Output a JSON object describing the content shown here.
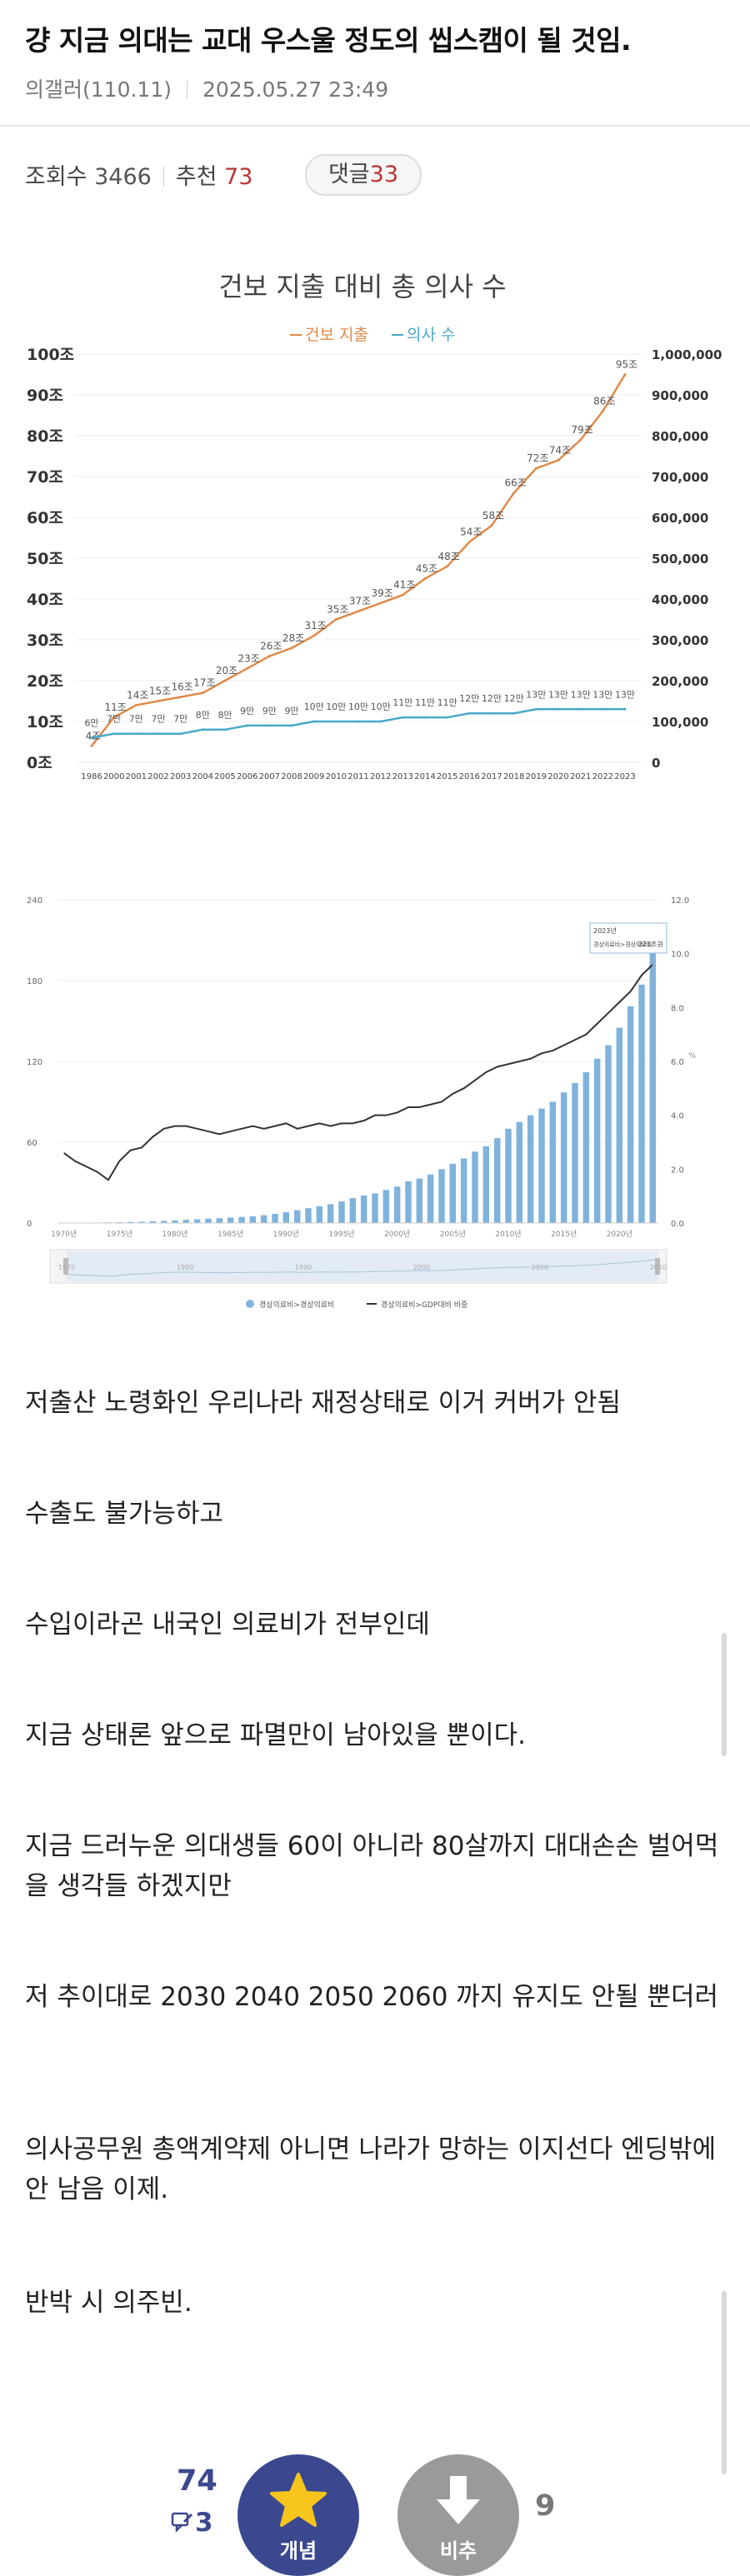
{
  "post": {
    "title": "걍 지금 의대는 교대 우스울 정도의 씹스캠이 될 것임.",
    "author": "의갤러(110.11)",
    "datetime": "2025.05.27 23:49",
    "views_label": "조회수",
    "views": "3466",
    "recommend_label": "추천",
    "recommend": "73",
    "comments_label": "댓글",
    "comments": "33"
  },
  "chart1": {
    "chart_data": {
      "type": "line",
      "title": "건보 지출 대비 총 의사 수",
      "legend": [
        "건보 지출",
        "의사 수"
      ],
      "categories": [
        "1986",
        "2000",
        "2001",
        "2002",
        "2003",
        "2004",
        "2005",
        "2006",
        "2007",
        "2008",
        "2009",
        "2010",
        "2011",
        "2012",
        "2013",
        "2014",
        "2015",
        "2016",
        "2017",
        "2018",
        "2019",
        "2020",
        "2021",
        "2022",
        "2023"
      ],
      "series": [
        {
          "name": "건보 지출",
          "values": [
            4,
            11,
            14,
            15,
            16,
            17,
            20,
            23,
            26,
            28,
            31,
            35,
            37,
            39,
            41,
            45,
            48,
            54,
            58,
            66,
            72,
            74,
            79,
            86,
            95
          ]
        },
        {
          "name": "의사 수",
          "values": [
            60000,
            70000,
            70000,
            70000,
            70000,
            80000,
            80000,
            90000,
            90000,
            90000,
            100000,
            100000,
            100000,
            100000,
            110000,
            110000,
            110000,
            120000,
            120000,
            120000,
            130000,
            130000,
            130000,
            130000,
            130000
          ]
        }
      ],
      "point_labels": [
        "4조",
        "11조",
        "14조",
        "15조",
        "16조",
        "17조",
        "20조",
        "23조",
        "26조",
        "28조",
        "31조",
        "35조",
        "37조",
        "39조",
        "41조",
        "45조",
        "48조",
        "54조",
        "58조",
        "66조",
        "72조",
        "74조",
        "79조",
        "86조",
        "95조"
      ],
      "count_labels": [
        "6만",
        "7만",
        "7만",
        "7만",
        "7만",
        "8만",
        "8만",
        "9만",
        "9만",
        "9만",
        "10만",
        "10만",
        "10만",
        "10만",
        "11만",
        "11만",
        "11만",
        "12만",
        "12만",
        "12만",
        "13만",
        "13만",
        "13만",
        "13만",
        "13만"
      ],
      "left_ticks": [
        "0조",
        "10조",
        "20조",
        "30조",
        "40조",
        "50조",
        "60조",
        "70조",
        "80조",
        "90조",
        "100조"
      ],
      "right_ticks": [
        "0",
        "100,000",
        "200,000",
        "300,000",
        "400,000",
        "500,000",
        "600,000",
        "700,000",
        "800,000",
        "900,000",
        "1,000,000"
      ],
      "ylim": [
        0,
        100
      ],
      "y2lim": [
        0,
        1000000
      ]
    },
    "colors": {
      "spend": "#e08a4a",
      "doctors": "#4aa8c9"
    }
  },
  "chart2": {
    "chart_data": {
      "type": "bar",
      "years": [
        1970,
        1971,
        1972,
        1973,
        1974,
        1975,
        1976,
        1977,
        1978,
        1979,
        1980,
        1981,
        1982,
        1983,
        1984,
        1985,
        1986,
        1987,
        1988,
        1989,
        1990,
        1991,
        1992,
        1993,
        1994,
        1995,
        1996,
        1997,
        1998,
        1999,
        2000,
        2001,
        2002,
        2003,
        2004,
        2005,
        2006,
        2007,
        2008,
        2009,
        2010,
        2011,
        2012,
        2013,
        2014,
        2015,
        2016,
        2017,
        2018,
        2019,
        2020,
        2021,
        2022,
        2023
      ],
      "series": [
        {
          "name": "경상의료비>경상의료비",
          "values": [
            0.2,
            0.2,
            0.3,
            0.4,
            0.5,
            0.6,
            0.8,
            1,
            1.3,
            1.6,
            2,
            2.4,
            2.8,
            3.2,
            3.6,
            4,
            4.5,
            5,
            5.8,
            6.8,
            8,
            9.5,
            11,
            12.5,
            14,
            16,
            18.5,
            20.5,
            22,
            24.5,
            27,
            31,
            33,
            36,
            40,
            44,
            48,
            53,
            57,
            63,
            70,
            75,
            80,
            85,
            90,
            97,
            104,
            112,
            122,
            132,
            145,
            161,
            177,
            221
          ]
        },
        {
          "name": "경상의료비>GDP대비 비중",
          "values": [
            2.6,
            2.3,
            2.1,
            1.9,
            1.6,
            2.3,
            2.7,
            2.8,
            3.2,
            3.5,
            3.6,
            3.6,
            3.5,
            3.4,
            3.3,
            3.4,
            3.5,
            3.6,
            3.5,
            3.6,
            3.7,
            3.5,
            3.6,
            3.7,
            3.6,
            3.7,
            3.7,
            3.8,
            4,
            4,
            4.1,
            4.3,
            4.3,
            4.4,
            4.5,
            4.8,
            5,
            5.3,
            5.6,
            5.8,
            5.9,
            6,
            6.1,
            6.3,
            6.4,
            6.6,
            6.8,
            7,
            7.4,
            7.8,
            8.2,
            8.6,
            9.2,
            9.6
          ]
        }
      ],
      "left_ticks": [
        "0",
        "60",
        "120",
        "180",
        "240"
      ],
      "right_ticks": [
        "0.0",
        "2.0",
        "4.0",
        "6.0",
        "8.0",
        "10.0",
        "12.0"
      ],
      "x_ticks": [
        "1970년",
        "1975년",
        "1980년",
        "1985년",
        "1990년",
        "1995년",
        "2000년",
        "2005년",
        "2010년",
        "2015년",
        "2020년"
      ],
      "nav_ticks": [
        "1970",
        "1980",
        "1990",
        "2000",
        "2010",
        "2020"
      ],
      "right_unit": "%",
      "ylim": [
        0,
        240
      ],
      "y2lim": [
        0,
        12
      ],
      "tooltip_year": "2023년",
      "tooltip_label": "경상의료비>경상의료비",
      "tooltip_value": "221조원"
    },
    "colors": {
      "bars": "#7fb3dc",
      "line": "#333333"
    }
  },
  "body": {
    "paragraphs": [
      "저출산 노령화인 우리나라 재정상태로 이거 커버가 안됨",
      "수출도 불가능하고",
      "수입이라곤 내국인 의료비가 전부인데",
      "지금 상태론 앞으로 파멸만이 남아있을 뿐이다.",
      "지금 드러누운 의대생들 60이 아니라 80살까지 대대손손 벌어먹을 생각들 하겠지만",
      "저 추이대로 2030 2040 2050 2060 까지 유지도 안될 뿐더러",
      "의사공무원 총액계약제 아니면 나라가 망하는 이지선다 엔딩밖에 안 남음 이제.",
      "반박 시 의주빈."
    ]
  },
  "votes": {
    "up_count": "74",
    "comment_count": "3",
    "up_label": "개념",
    "down_label": "비추",
    "down_count": "9"
  },
  "colors": {
    "accent": "#3b4890",
    "highlight": "#b33333"
  }
}
